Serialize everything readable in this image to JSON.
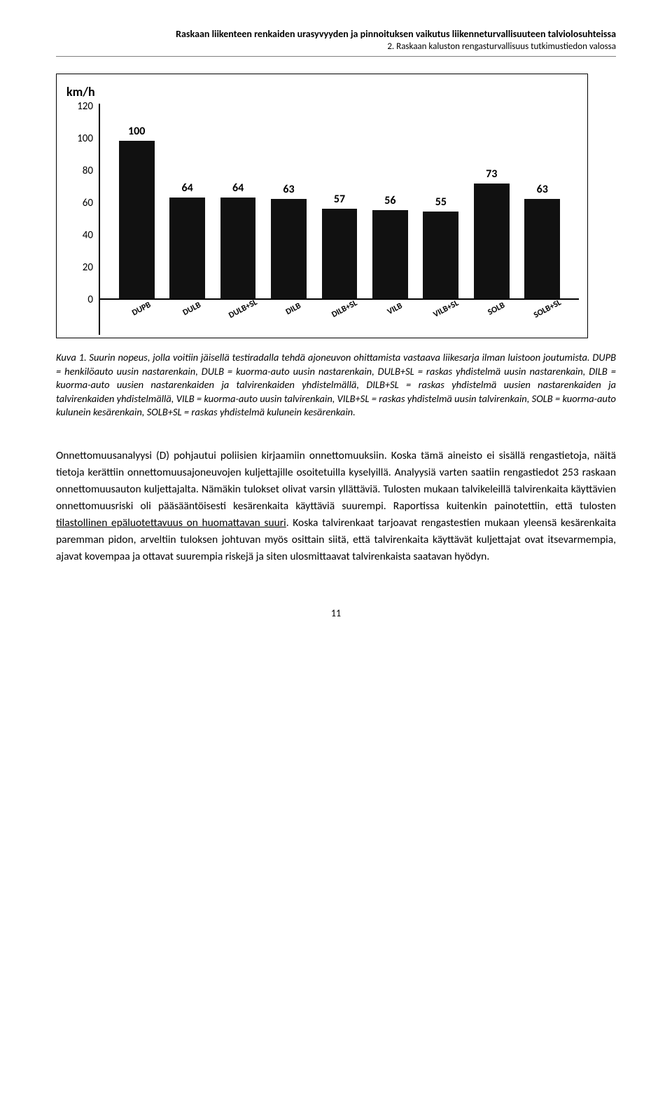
{
  "header": {
    "title": "Raskaan liikenteen renkaiden urasyvyyden ja pinnoituksen vaikutus liikenneturvallisuuteen talviolosuhteissa",
    "subtitle": "2. Raskaan kaluston rengasturvallisuus tutkimustiedon valossa"
  },
  "chart": {
    "type": "bar",
    "ylabel": "km/h",
    "ylim": [
      0,
      120
    ],
    "ytick_step": 20,
    "yticks": [
      "120",
      "100",
      "80",
      "60",
      "40",
      "20",
      "0"
    ],
    "background_color": "#ffffff",
    "bar_color": "#111111",
    "label_fontsize": 16,
    "value_fontsize": 16,
    "bars": [
      {
        "label": "DUPB",
        "value": 100
      },
      {
        "label": "DULB",
        "value": 64
      },
      {
        "label": "DULB+SL",
        "value": 64
      },
      {
        "label": "DILB",
        "value": 63
      },
      {
        "label": "DILB+SL",
        "value": 57
      },
      {
        "label": "VILB",
        "value": 56
      },
      {
        "label": "VILB+SL",
        "value": 55
      },
      {
        "label": "SOLB",
        "value": 73
      },
      {
        "label": "SOLB+SL",
        "value": 63
      }
    ]
  },
  "caption": {
    "lead": "Kuva 1.",
    "line1": " Suurin nopeus, jolla voitiin jäisellä testiradalla tehdä ajoneuvon ohittamista vastaava liikesarja ilman luistoon joutumista.",
    "line2": " DUPB = henkilöauto uusin nastarenkain, DULB = kuorma-auto uusin nastarenkain, DULB+SL = raskas yhdistelmä uusin nastarenkain, DILB = kuorma-auto uusien nastarenkaiden ja talvirenkaiden yhdistelmällä, DILB+SL = raskas yhdistelmä uusien nastarenkaiden ja talvirenkaiden yhdistelmällä, VILB = kuorma-auto uusin talvirenkain, VILB+SL = raskas yhdistelmä uusin talvirenkain, SOLB = kuorma-auto kulunein kesärenkain, SOLB+SL = raskas yhdistelmä kulunein kesärenkain."
  },
  "body": {
    "before_underline": "Onnettomuusanalyysi (D) pohjautui poliisien kirjaamiin onnettomuuksiin. Koska tämä aineisto ei sisällä rengastietoja, näitä tietoja kerättiin onnettomuusajoneuvojen kuljettajille osoitetuilla kyselyillä. Analyysiä varten saatiin rengastiedot 253 raskaan onnettomuusauton kuljettajalta. Nämäkin tulokset olivat varsin yllättäviä. Tulosten mukaan talvikeleillä talvirenkaita käyttävien onnettomuusriski oli pääsääntöisesti kesärenkaita käyttäviä suurempi. Raportissa kuitenkin painotettiin, että tulosten ",
    "underline": "tilastollinen epäluotettavuus on huomattavan suuri",
    "after_underline": ". Koska talvirenkaat tarjoavat rengastestien mukaan yleensä kesärenkaita paremman pidon, arveltiin tuloksen johtuvan myös osittain siitä, että talvirenkaita käyttävät kuljettajat ovat itsevarmempia, ajavat kovempaa ja ottavat suurempia riskejä ja siten ulosmittaavat talvirenkaista saatavan hyödyn."
  },
  "page_number": "11"
}
